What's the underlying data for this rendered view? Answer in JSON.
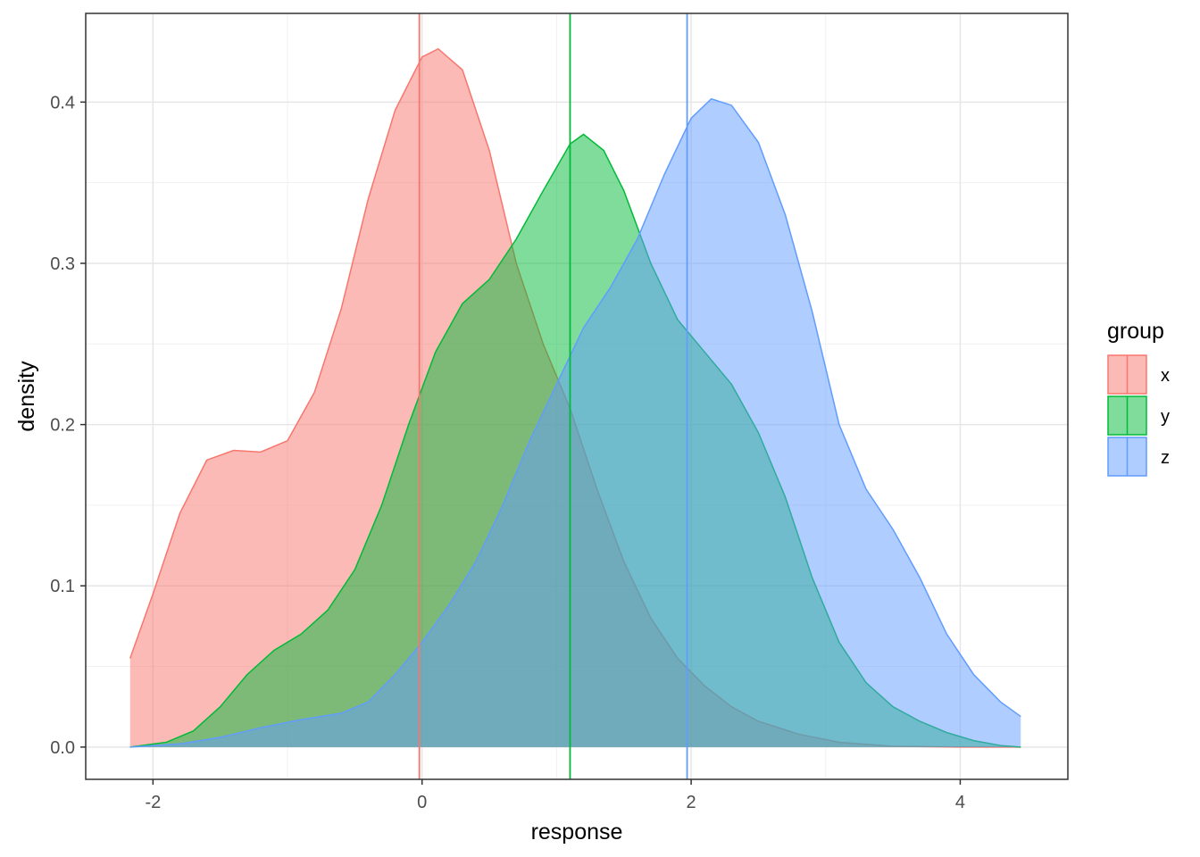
{
  "chart_data": {
    "type": "area",
    "subtype": "density",
    "title": "",
    "xlabel": "response",
    "ylabel": "density",
    "xlim": [
      -2.5,
      4.8
    ],
    "ylim": [
      -0.02,
      0.455
    ],
    "x_ticks": [
      -2,
      0,
      2,
      4
    ],
    "x_tick_labels": [
      "-2",
      "0",
      "2",
      "4"
    ],
    "y_ticks": [
      0.0,
      0.1,
      0.2,
      0.3,
      0.4
    ],
    "y_tick_labels": [
      "0.0",
      "0.1",
      "0.2",
      "0.3",
      "0.4"
    ],
    "grid": true,
    "legend": {
      "title": "group",
      "position": "right",
      "entries": [
        "x",
        "y",
        "z"
      ]
    },
    "series": [
      {
        "name": "x",
        "color": "#F8766D",
        "mean_line": -0.02,
        "points": [
          [
            -2.17,
            0.055
          ],
          [
            -2.0,
            0.095
          ],
          [
            -1.8,
            0.145
          ],
          [
            -1.6,
            0.178
          ],
          [
            -1.4,
            0.184
          ],
          [
            -1.2,
            0.183
          ],
          [
            -1.0,
            0.19
          ],
          [
            -0.8,
            0.22
          ],
          [
            -0.6,
            0.272
          ],
          [
            -0.4,
            0.34
          ],
          [
            -0.2,
            0.395
          ],
          [
            0.0,
            0.428
          ],
          [
            0.12,
            0.433
          ],
          [
            0.3,
            0.42
          ],
          [
            0.5,
            0.37
          ],
          [
            0.7,
            0.3
          ],
          [
            0.9,
            0.25
          ],
          [
            1.1,
            0.21
          ],
          [
            1.3,
            0.16
          ],
          [
            1.5,
            0.115
          ],
          [
            1.7,
            0.08
          ],
          [
            1.9,
            0.055
          ],
          [
            2.1,
            0.038
          ],
          [
            2.3,
            0.025
          ],
          [
            2.5,
            0.016
          ],
          [
            2.8,
            0.008
          ],
          [
            3.1,
            0.003
          ],
          [
            3.5,
            0.0005
          ],
          [
            4.0,
            0.0
          ],
          [
            4.45,
            0.0
          ]
        ]
      },
      {
        "name": "y",
        "color": "#00BA38",
        "mean_line": 1.1,
        "points": [
          [
            -2.17,
            0.0
          ],
          [
            -1.9,
            0.003
          ],
          [
            -1.7,
            0.01
          ],
          [
            -1.5,
            0.025
          ],
          [
            -1.3,
            0.045
          ],
          [
            -1.1,
            0.06
          ],
          [
            -0.9,
            0.07
          ],
          [
            -0.7,
            0.085
          ],
          [
            -0.5,
            0.11
          ],
          [
            -0.3,
            0.15
          ],
          [
            -0.1,
            0.2
          ],
          [
            0.1,
            0.245
          ],
          [
            0.3,
            0.275
          ],
          [
            0.5,
            0.29
          ],
          [
            0.7,
            0.315
          ],
          [
            0.9,
            0.345
          ],
          [
            1.1,
            0.374
          ],
          [
            1.2,
            0.38
          ],
          [
            1.35,
            0.37
          ],
          [
            1.5,
            0.345
          ],
          [
            1.7,
            0.3
          ],
          [
            1.9,
            0.265
          ],
          [
            2.1,
            0.245
          ],
          [
            2.3,
            0.225
          ],
          [
            2.5,
            0.195
          ],
          [
            2.7,
            0.155
          ],
          [
            2.9,
            0.105
          ],
          [
            3.1,
            0.065
          ],
          [
            3.3,
            0.04
          ],
          [
            3.5,
            0.025
          ],
          [
            3.7,
            0.016
          ],
          [
            3.9,
            0.009
          ],
          [
            4.1,
            0.004
          ],
          [
            4.3,
            0.001
          ],
          [
            4.45,
            0.0
          ]
        ]
      },
      {
        "name": "z",
        "color": "#619CFF",
        "mean_line": 1.97,
        "points": [
          [
            -2.17,
            0.0
          ],
          [
            -1.8,
            0.002
          ],
          [
            -1.5,
            0.006
          ],
          [
            -1.2,
            0.012
          ],
          [
            -0.9,
            0.017
          ],
          [
            -0.6,
            0.021
          ],
          [
            -0.4,
            0.028
          ],
          [
            -0.2,
            0.045
          ],
          [
            0.0,
            0.065
          ],
          [
            0.2,
            0.088
          ],
          [
            0.4,
            0.115
          ],
          [
            0.6,
            0.15
          ],
          [
            0.8,
            0.19
          ],
          [
            1.0,
            0.225
          ],
          [
            1.2,
            0.26
          ],
          [
            1.4,
            0.285
          ],
          [
            1.6,
            0.315
          ],
          [
            1.8,
            0.355
          ],
          [
            2.0,
            0.39
          ],
          [
            2.15,
            0.402
          ],
          [
            2.3,
            0.398
          ],
          [
            2.5,
            0.375
          ],
          [
            2.7,
            0.33
          ],
          [
            2.9,
            0.27
          ],
          [
            3.1,
            0.2
          ],
          [
            3.3,
            0.16
          ],
          [
            3.5,
            0.135
          ],
          [
            3.7,
            0.105
          ],
          [
            3.9,
            0.07
          ],
          [
            4.1,
            0.045
          ],
          [
            4.3,
            0.028
          ],
          [
            4.45,
            0.019
          ]
        ]
      }
    ]
  }
}
